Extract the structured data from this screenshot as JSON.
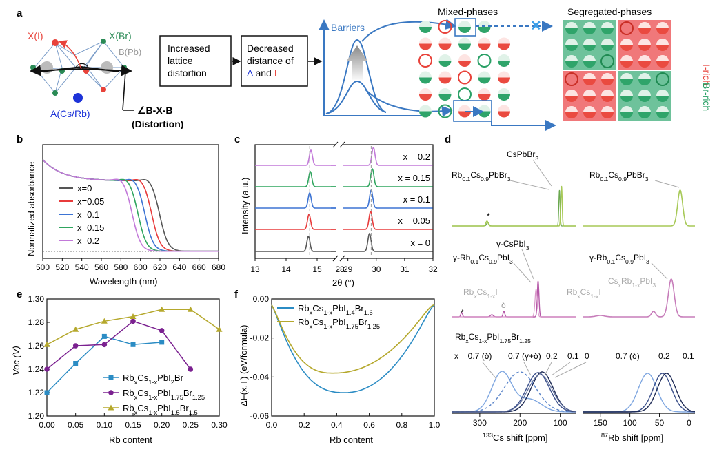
{
  "panel_labels": {
    "a": "a",
    "b": "b",
    "c": "c",
    "d": "d",
    "e": "e",
    "f": "f"
  },
  "panel_a": {
    "x_i": "X(I)",
    "x_br": "X(Br)",
    "b_pb": "B(Pb)",
    "a_cs": "A(Cs/Rb)",
    "angle_label": "∠B-X-B",
    "distortion": "(Distortion)",
    "box1_lines": [
      "Increased",
      "lattice",
      "distortion"
    ],
    "box2_lines": [
      "Decreased",
      "distance of"
    ],
    "box2_A": "A",
    "box2_and": " and ",
    "box2_I": "I",
    "barriers": "Barriers",
    "mixed": "Mixed-phases",
    "segregated": "Segregated-phases",
    "i_rich": "I-rich",
    "br_rich": "Br-rich",
    "blocked": "✕",
    "colors": {
      "red": "#e8423a",
      "green": "#2aa066",
      "blue": "#3a78c2",
      "box_green": "#6ec29b",
      "box_red": "#f0787a"
    }
  },
  "chart_data": [
    {
      "panel": "b",
      "type": "line",
      "xlabel": "Wavelength (nm)",
      "ylabel": "Normalized absorbance",
      "xlim": [
        500,
        680
      ],
      "xticks": [
        500,
        520,
        540,
        560,
        580,
        600,
        620,
        640,
        660,
        680
      ],
      "series": [
        {
          "name": "x=0",
          "color": "#555555",
          "edge": 622
        },
        {
          "name": "x=0.05",
          "color": "#e83b3b",
          "edge": 614
        },
        {
          "name": "x=0.1",
          "color": "#3d74d4",
          "edge": 607
        },
        {
          "name": "x=0.15",
          "color": "#2fa55e",
          "edge": 600
        },
        {
          "name": "x=0.2",
          "color": "#c279d9",
          "edge": 594
        }
      ]
    },
    {
      "panel": "c",
      "type": "line",
      "xlabel": "2θ (°)",
      "ylabel": "Intensity (a.u.)",
      "xticks_left": [
        13,
        14,
        15
      ],
      "xticks_right": [
        29,
        30,
        31,
        32
      ],
      "break_label": "28",
      "series": [
        {
          "name": "x = 0",
          "color": "#555555",
          "peak1": 14.72,
          "peak2": 29.76
        },
        {
          "name": "x = 0.05",
          "color": "#e83b3b",
          "peak1": 14.74,
          "peak2": 29.8
        },
        {
          "name": "x = 0.1",
          "color": "#3d74d4",
          "peak1": 14.76,
          "peak2": 29.82
        },
        {
          "name": "x = 0.15",
          "color": "#2fa55e",
          "peak1": 14.78,
          "peak2": 29.86
        },
        {
          "name": "x = 0.2",
          "color": "#c279d9",
          "peak1": 14.8,
          "peak2": 29.9
        }
      ]
    },
    {
      "panel": "d",
      "type": "line",
      "xlabel_left": "133Cs shift [ppm]",
      "xlabel_right": "87Rb shift [ppm]",
      "xticks_left": [
        300,
        200,
        100
      ],
      "xticks_right": [
        150,
        100,
        50,
        0
      ],
      "labels": {
        "cspbbr3": "CsPbBr3",
        "rb01_br_left": "Rb0.1Cs0.9PbBr3",
        "rb01_br_right": "Rb0.1Cs0.9PbBr3",
        "gamma_cspbi3": "γ-CsPbI3",
        "gamma_rb_left": "γ-Rb0.1Cs0.9PbI3",
        "gamma_rb_right": "γ-Rb0.1Cs0.9PbI3",
        "rbcs_i": "RbxCs1-xI",
        "delta": "δ",
        "star": "*",
        "rb_i_right": "RbxCs1-xI",
        "cs_rb_pbi3": "CsxRb1-xPbI3",
        "mixed_title": "RbxCs1-xPbI1.75Br1.25",
        "comp_left": [
          "x = 0.7 (δ)",
          "0.7 (γ+δ)",
          "0.2",
          "0.1",
          "0"
        ],
        "comp_right": [
          "0.7 (δ)",
          "0.2",
          "0.1"
        ]
      }
    },
    {
      "panel": "e",
      "type": "line",
      "xlabel": "Rb content",
      "ylabel": "Voc (V)",
      "xlim": [
        0,
        0.3
      ],
      "ylim": [
        1.2,
        1.3
      ],
      "xticks": [
        0.0,
        0.05,
        0.1,
        0.15,
        0.2,
        0.25,
        0.3
      ],
      "yticks": [
        1.2,
        1.22,
        1.24,
        1.26,
        1.28,
        1.3
      ],
      "series": [
        {
          "name": "RbxCs1-xPbI2Br",
          "color": "#2b8cc4",
          "marker": "square",
          "x": [
            0,
            0.05,
            0.1,
            0.15,
            0.2
          ],
          "y": [
            1.22,
            1.245,
            1.268,
            1.261,
            1.263
          ]
        },
        {
          "name": "RbxCs1-xPbI1.75Br1.25",
          "color": "#7b2190",
          "marker": "circle",
          "x": [
            0,
            0.05,
            0.1,
            0.15,
            0.2,
            0.25
          ],
          "y": [
            1.24,
            1.26,
            1.261,
            1.281,
            1.273,
            1.24
          ]
        },
        {
          "name": "RbxCs1-xPbI1.5Br1.5",
          "color": "#b5a82c",
          "marker": "triangle",
          "x": [
            0,
            0.05,
            0.1,
            0.15,
            0.2,
            0.25,
            0.3
          ],
          "y": [
            1.261,
            1.274,
            1.281,
            1.285,
            1.291,
            1.291,
            1.274
          ]
        }
      ]
    },
    {
      "panel": "f",
      "type": "line",
      "xlabel": "Rb content",
      "ylabel": "ΔF(x,T) (eV/formula)",
      "xlim": [
        0,
        1.0
      ],
      "ylim": [
        -0.06,
        0.0
      ],
      "xticks": [
        0.0,
        0.2,
        0.4,
        0.6,
        0.8,
        1.0
      ],
      "yticks": [
        0.0,
        -0.02,
        -0.04,
        -0.06
      ],
      "series": [
        {
          "name": "RbxCs1-xPbI1.4Br1.6",
          "color": "#2b8cc4",
          "min_x": 0.45,
          "min_y": -0.048
        },
        {
          "name": "RbxCs1-xPbI1.75Br1.25",
          "color": "#b5a82c",
          "min_x": 0.38,
          "min_y": -0.038
        }
      ]
    }
  ]
}
